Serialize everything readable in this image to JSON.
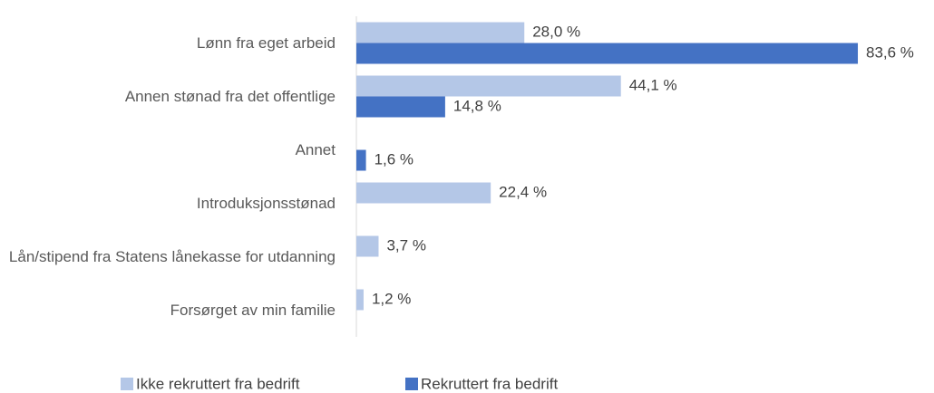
{
  "chart_data": {
    "type": "bar",
    "orientation": "horizontal",
    "categories": [
      "Lønn fra eget arbeid",
      "Annen stønad fra det offentlige",
      "Annet",
      "Introduksjonsstønad",
      "Lån/stipend fra Statens lånekasse for utdanning",
      "Forsørget av min familie"
    ],
    "series": [
      {
        "name": "Ikke rekruttert fra bedrift",
        "color": "#b4c7e7",
        "values": [
          28.0,
          44.1,
          null,
          22.4,
          3.7,
          1.2
        ],
        "value_labels": [
          "28,0 %",
          "44,1 %",
          null,
          "22,4 %",
          "3,7 %",
          "1,2 %"
        ]
      },
      {
        "name": "Rekruttert fra bedrift",
        "color": "#4472c4",
        "values": [
          83.6,
          14.8,
          1.6,
          null,
          null,
          null
        ],
        "value_labels": [
          "83,6 %",
          "14,8 %",
          "1,6 %",
          null,
          null,
          null
        ]
      }
    ],
    "xlim": [
      0,
      100
    ],
    "legend": "bottom"
  }
}
